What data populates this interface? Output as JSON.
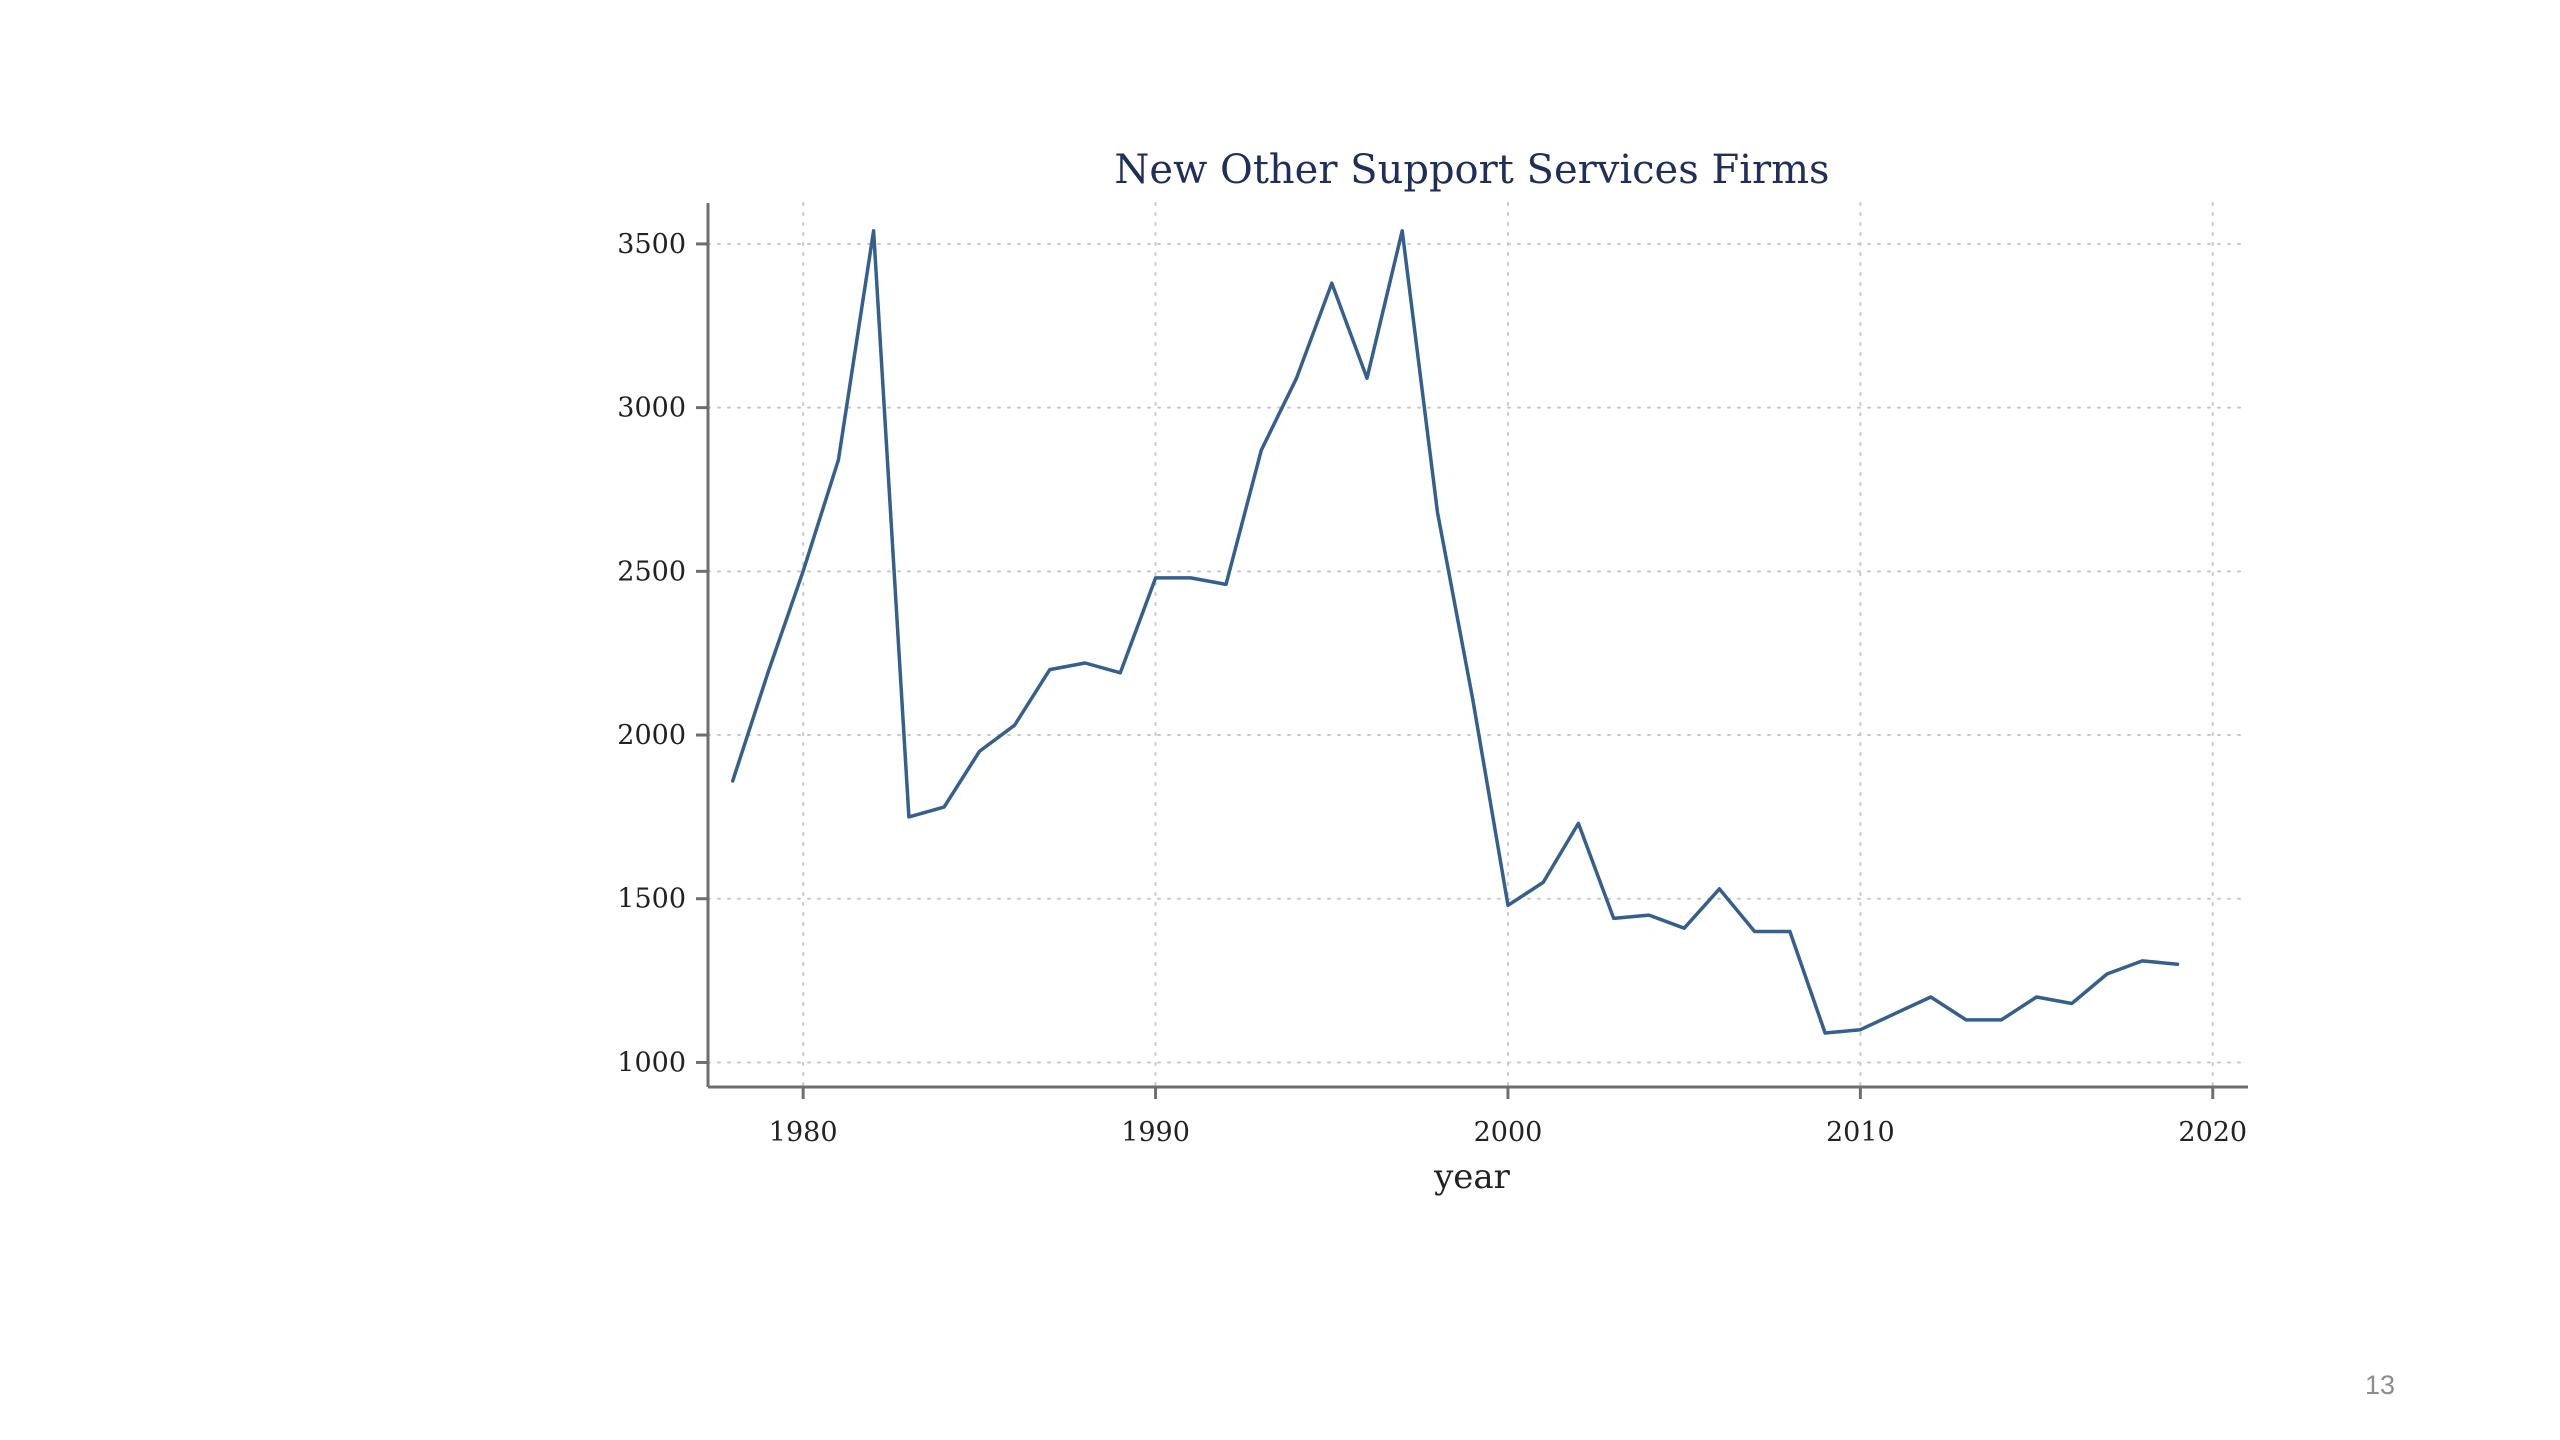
{
  "slide": {
    "page_number": "13"
  },
  "colors": {
    "series": "#355f8d",
    "title": "#1f2e5a",
    "axis": "#6e6e6e",
    "grid": "#c8c8c8"
  },
  "chart_data": {
    "type": "line",
    "title": "New Other Support Services Firms",
    "xlabel": "year",
    "ylabel": "",
    "xlim": [
      1977.3,
      2021
    ],
    "ylim": [
      925,
      3625
    ],
    "xticks": [
      1980,
      1990,
      2000,
      2010,
      2020
    ],
    "yticks": [
      1000,
      1500,
      2000,
      2500,
      3000,
      3500
    ],
    "grid": true,
    "legend": "none",
    "series": [
      {
        "x": [
          1978,
          1979,
          1980,
          1981,
          1982,
          1983,
          1984,
          1985,
          1986,
          1987,
          1988,
          1989,
          1990,
          1991,
          1992,
          1993,
          1994,
          1995,
          1996,
          1997,
          1998,
          1999,
          2000,
          2001,
          2002,
          2003,
          2004,
          2005,
          2006,
          2007,
          2008,
          2009,
          2010,
          2011,
          2012,
          2013,
          2014,
          2015,
          2016,
          2017,
          2018,
          2019
        ],
        "values": [
          1860,
          2190,
          2500,
          2840,
          3540,
          1750,
          1780,
          1950,
          2030,
          2200,
          2220,
          2190,
          2480,
          2480,
          2460,
          2870,
          3090,
          3380,
          3090,
          3540,
          2680,
          2110,
          1480,
          1550,
          1730,
          1440,
          1450,
          1410,
          1530,
          1400,
          1400,
          1090,
          1100,
          1150,
          1200,
          1130,
          1130,
          1200,
          1180,
          1270,
          1310,
          1300
        ]
      }
    ]
  }
}
